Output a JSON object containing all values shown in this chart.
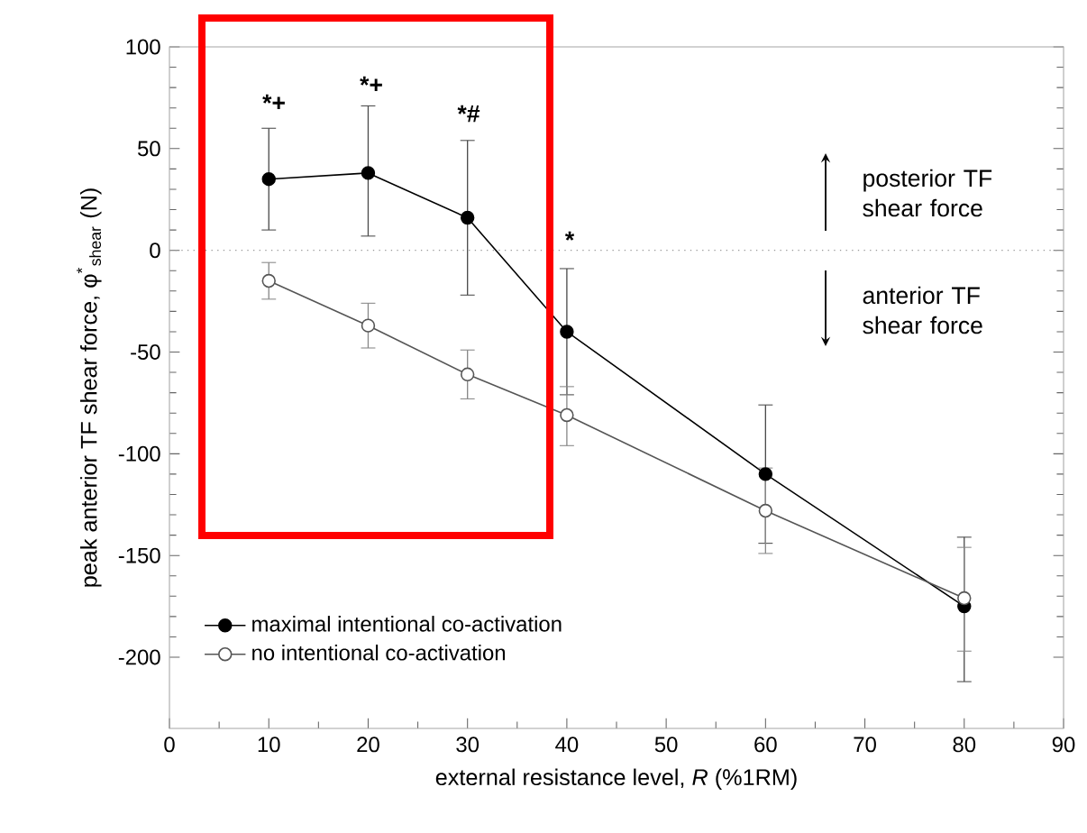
{
  "chart_data": {
    "type": "line",
    "xlabel": "external resistance level, *R* (%1RM)",
    "ylabel": "peak anterior TF shear force, φ$^{*}$$_{shear}$ (N)",
    "x": [
      10,
      20,
      30,
      40,
      60,
      80
    ],
    "series": [
      {
        "name": "maximal intentional co-activation",
        "color": "#000000",
        "values": [
          35,
          38,
          16,
          -40,
          -110,
          -175
        ],
        "errors": [
          [
            10,
            60
          ],
          [
            7,
            71
          ],
          [
            -22,
            54
          ],
          [
            -9,
            -71
          ],
          [
            -76,
            -144
          ],
          [
            -141,
            -212
          ]
        ]
      },
      {
        "name": "no intentional co-activation",
        "color": "#555555",
        "values": [
          -15,
          -37,
          -61,
          -81,
          -128,
          -171
        ],
        "errors": [
          [
            -24,
            -6
          ],
          [
            -48,
            -26
          ],
          [
            -73,
            -49
          ],
          [
            -96,
            -67
          ],
          [
            -149,
            -107
          ],
          [
            -197,
            -146
          ]
        ]
      }
    ],
    "xlim": [
      0,
      90
    ],
    "xticks": [
      0,
      10,
      20,
      30,
      40,
      50,
      60,
      70,
      80,
      90
    ],
    "ylim": [
      -235,
      100
    ],
    "yticks": [
      -200,
      -150,
      -100,
      -50,
      0,
      50,
      100
    ],
    "ref_lines": [
      {
        "axis": "y",
        "value": 0,
        "color": "#999999",
        "line_style": "dotted"
      }
    ],
    "annotations": [
      "*+",
      "*+",
      "*#",
      "*",
      "posterior TF shear force",
      "anterior TF shear force"
    ],
    "marker": "circle",
    "line_style": "solid",
    "legend": "bottom left",
    "grid": false
  }
}
